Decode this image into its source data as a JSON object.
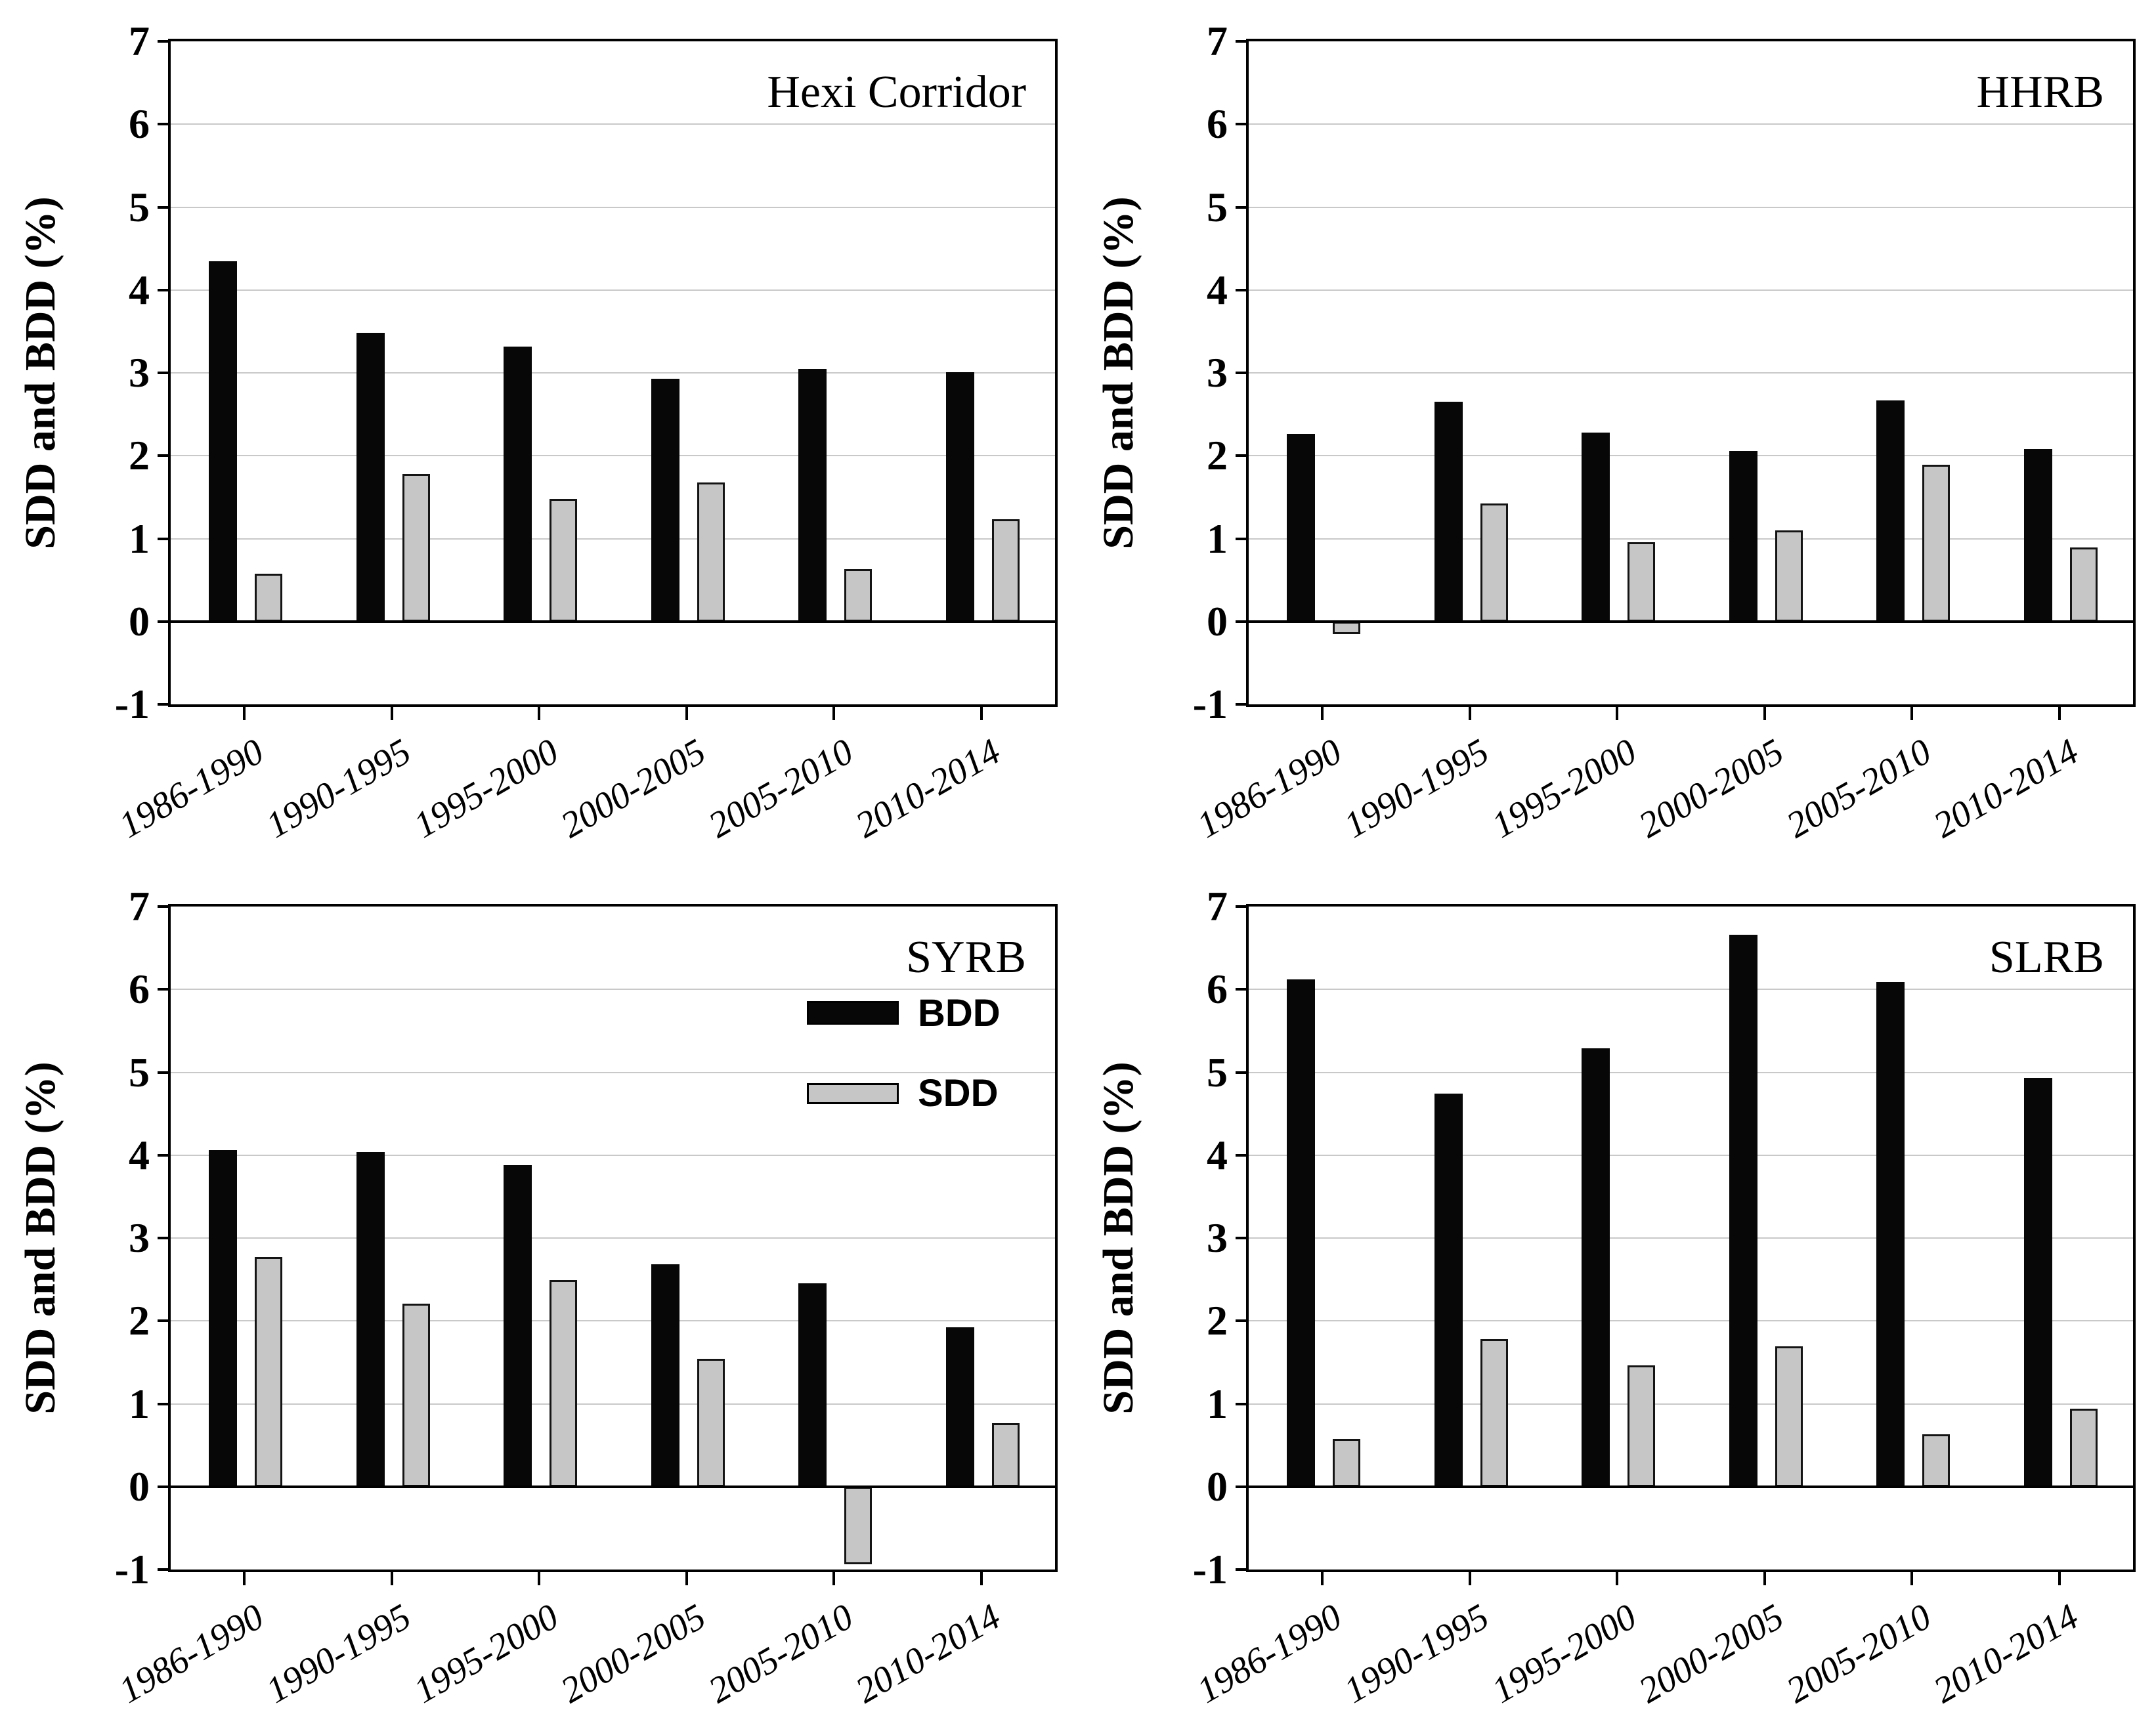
{
  "figure": {
    "ylabel": "SDD and BDD (%)",
    "ylim": [
      -1,
      7
    ],
    "y_ticks": [
      7,
      6,
      5,
      4,
      3,
      2,
      1,
      0,
      -1
    ],
    "grid_values": [
      1,
      2,
      3,
      4,
      5,
      6
    ],
    "categories": [
      "1986-1990",
      "1990-1995",
      "1995-2000",
      "2000-2005",
      "2005-2010",
      "2010-2014"
    ],
    "colors": {
      "bdd": "#070707",
      "sdd": "#c6c6c6",
      "grid": "#c9c9c9",
      "axis": "#000000",
      "background": "#ffffff"
    },
    "legend": {
      "host_panel": "SYRB",
      "entries": [
        {
          "name": "BDD",
          "color": "#070707"
        },
        {
          "name": "SDD",
          "color": "#c6c6c6"
        }
      ]
    }
  },
  "chart_data": [
    {
      "type": "bar",
      "title": "Hexi Corridor",
      "ylabel": "SDD and BDD (%)",
      "ylim": [
        -1,
        7
      ],
      "grid": true,
      "legend": false,
      "categories": [
        "1986-1990",
        "1990-1995",
        "1995-2000",
        "2000-2005",
        "2005-2010",
        "2010-2014"
      ],
      "series": [
        {
          "name": "BDD",
          "color": "#070707",
          "values": [
            4.35,
            3.48,
            3.32,
            2.93,
            3.05,
            3.01
          ]
        },
        {
          "name": "SDD",
          "color": "#c6c6c6",
          "values": [
            0.58,
            1.78,
            1.48,
            1.68,
            0.63,
            1.23
          ]
        }
      ]
    },
    {
      "type": "bar",
      "title": "HHRB",
      "ylabel": "SDD and BDD (%)",
      "ylim": [
        -1,
        7
      ],
      "grid": true,
      "legend": false,
      "categories": [
        "1986-1990",
        "1990-1995",
        "1995-2000",
        "2000-2005",
        "2005-2010",
        "2010-2014"
      ],
      "series": [
        {
          "name": "BDD",
          "color": "#070707",
          "values": [
            2.26,
            2.65,
            2.28,
            2.06,
            2.67,
            2.08
          ]
        },
        {
          "name": "SDD",
          "color": "#c6c6c6",
          "values": [
            -0.15,
            1.42,
            0.96,
            1.1,
            1.89,
            0.89
          ]
        }
      ]
    },
    {
      "type": "bar",
      "title": "SYRB",
      "ylabel": "SDD and BDD (%)",
      "ylim": [
        -1,
        7
      ],
      "grid": true,
      "legend": true,
      "legend_position": "upper right",
      "categories": [
        "1986-1990",
        "1990-1995",
        "1995-2000",
        "2000-2005",
        "2005-2010",
        "2010-2014"
      ],
      "series": [
        {
          "name": "BDD",
          "color": "#070707",
          "values": [
            4.06,
            4.04,
            3.88,
            2.68,
            2.45,
            1.92
          ]
        },
        {
          "name": "SDD",
          "color": "#c6c6c6",
          "values": [
            2.77,
            2.21,
            2.49,
            1.54,
            -0.94,
            0.77
          ]
        }
      ]
    },
    {
      "type": "bar",
      "title": "SLRB",
      "ylabel": "SDD and BDD (%)",
      "ylim": [
        -1,
        7
      ],
      "grid": true,
      "legend": false,
      "categories": [
        "1986-1990",
        "1990-1995",
        "1995-2000",
        "2000-2005",
        "2005-2010",
        "2010-2014"
      ],
      "series": [
        {
          "name": "BDD",
          "color": "#070707",
          "values": [
            6.12,
            4.74,
            5.29,
            6.66,
            6.09,
            4.93
          ]
        },
        {
          "name": "SDD",
          "color": "#c6c6c6",
          "values": [
            0.58,
            1.78,
            1.46,
            1.69,
            0.63,
            0.94
          ]
        }
      ]
    }
  ]
}
